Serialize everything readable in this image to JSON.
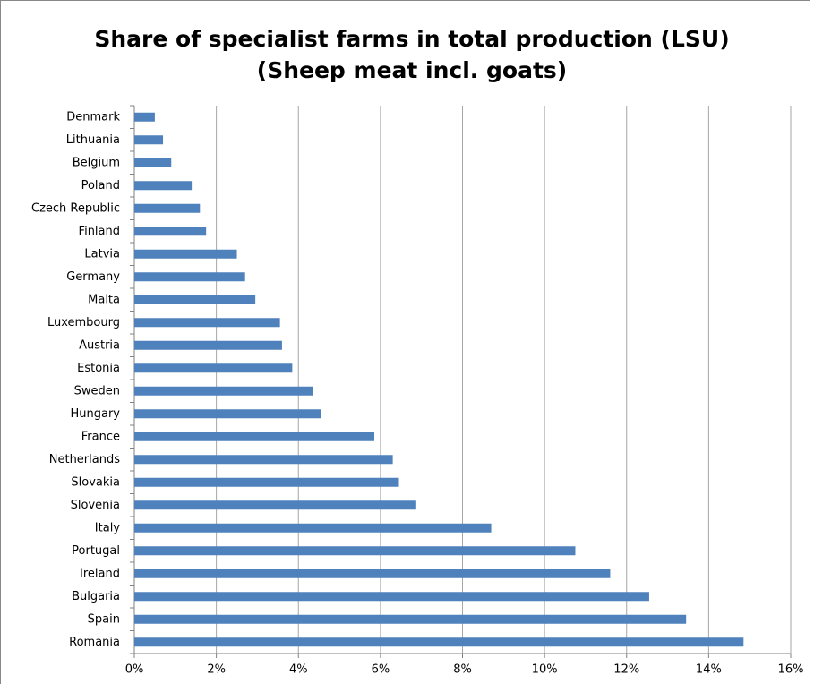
{
  "chart_data": {
    "type": "barh",
    "title": "Share of specialist farms in total production (LSU)",
    "subtitle": "(Sheep meat incl. goats)",
    "categories": [
      "Denmark",
      "Lithuania",
      "Belgium",
      "Poland",
      "Czech Republic",
      "Finland",
      "Latvia",
      "Germany",
      "Malta",
      "Luxembourg",
      "Austria",
      "Estonia",
      "Sweden",
      "Hungary",
      "France",
      "Netherlands",
      "Slovakia",
      "Slovenia",
      "Italy",
      "Portugal",
      "Ireland",
      "Bulgaria",
      "Spain",
      "Romania"
    ],
    "values": [
      0.5,
      0.7,
      0.9,
      1.4,
      1.6,
      1.75,
      2.5,
      2.7,
      2.95,
      3.55,
      3.6,
      3.85,
      4.35,
      4.55,
      5.85,
      6.3,
      6.45,
      6.85,
      8.7,
      10.75,
      11.6,
      12.55,
      13.45,
      14.85
    ],
    "color": "#4f81bd",
    "xlim": [
      0,
      16
    ],
    "xticks": [
      {
        "value": 0,
        "label": "0%"
      },
      {
        "value": 2,
        "label": "2%"
      },
      {
        "value": 4,
        "label": "4%"
      },
      {
        "value": 6,
        "label": "6%"
      },
      {
        "value": 8,
        "label": "8%"
      },
      {
        "value": 10,
        "label": "10%"
      },
      {
        "value": 12,
        "label": "12%"
      },
      {
        "value": 14,
        "label": "14%"
      },
      {
        "value": 16,
        "label": "16%"
      }
    ],
    "grid": true
  }
}
